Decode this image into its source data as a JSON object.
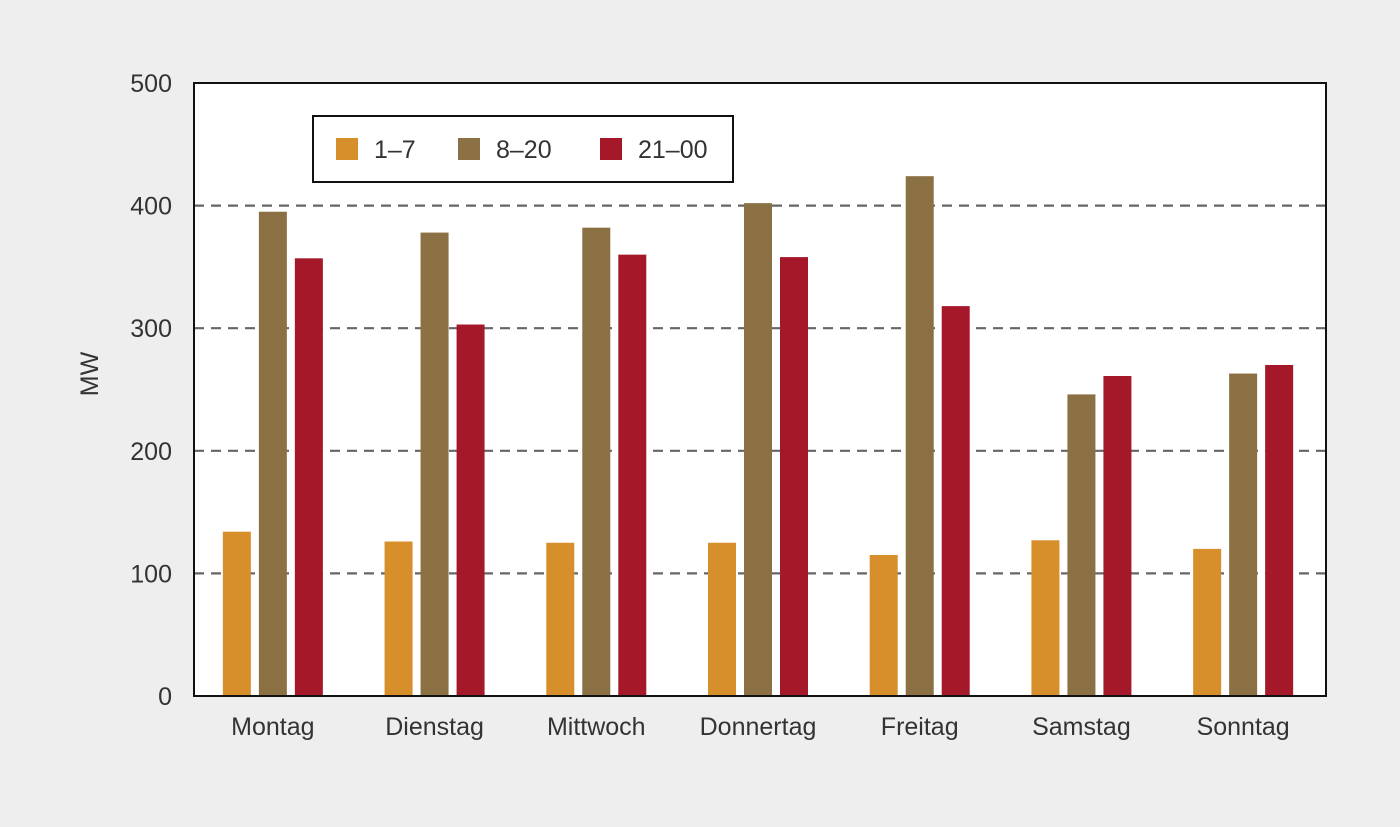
{
  "chart_data": {
    "type": "bar",
    "title": "",
    "xlabel": "",
    "ylabel": "MW",
    "ylim": [
      0,
      500
    ],
    "yticks": [
      0,
      100,
      200,
      300,
      400,
      500
    ],
    "ytick_labels": [
      "0",
      "100",
      "200",
      "300",
      "400",
      "500"
    ],
    "grid": "horizontal dashed",
    "legend_position": "top-left",
    "categories": [
      "Montag",
      "Dienstag",
      "Mittwoch",
      "Donnertag",
      "Freitag",
      "Samstag",
      "Sonntag"
    ],
    "series": [
      {
        "name": "1–7",
        "color": "#d68f2a",
        "values": [
          134,
          126,
          125,
          125,
          115,
          127,
          120
        ]
      },
      {
        "name": "8–20",
        "color": "#8a7042",
        "values": [
          395,
          378,
          382,
          402,
          424,
          246,
          263
        ]
      },
      {
        "name": "21–00",
        "color": "#a5182a",
        "values": [
          357,
          303,
          360,
          358,
          318,
          261,
          270
        ]
      }
    ]
  },
  "colors": {
    "background": "#eeeeee",
    "plot_background": "#ffffff",
    "grid": "#666666"
  }
}
